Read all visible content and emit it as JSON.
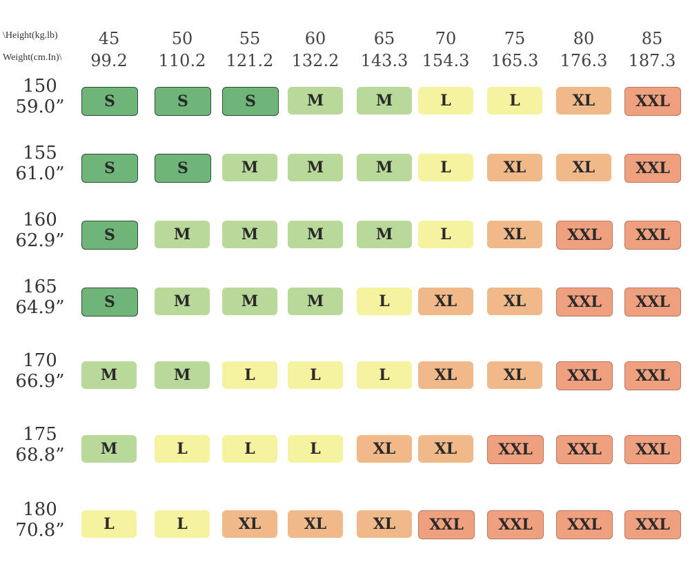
{
  "header": {
    "height_label": "\\Height(kg.lb)",
    "weight_label": "Weight(cm.In)\\"
  },
  "columns": [
    {
      "kg": "45",
      "lb": "99.2"
    },
    {
      "kg": "50",
      "lb": "110.2"
    },
    {
      "kg": "55",
      "lb": "121.2"
    },
    {
      "kg": "60",
      "lb": "132.2"
    },
    {
      "kg": "65",
      "lb": "143.3"
    },
    {
      "kg": "70",
      "lb": "154.3"
    },
    {
      "kg": "75",
      "lb": "165.3"
    },
    {
      "kg": "80",
      "lb": "176.3"
    },
    {
      "kg": "85",
      "lb": "187.3"
    }
  ],
  "rows": [
    {
      "cm": "150",
      "in": "59.0”",
      "sizes": [
        "S",
        "S",
        "S",
        "M",
        "M",
        "L",
        "L",
        "XL",
        "XXL"
      ]
    },
    {
      "cm": "155",
      "in": "61.0”",
      "sizes": [
        "S",
        "S",
        "M",
        "M",
        "M",
        "L",
        "XL",
        "XL",
        "XXL"
      ]
    },
    {
      "cm": "160",
      "in": "62.9”",
      "sizes": [
        "S",
        "M",
        "M",
        "M",
        "M",
        "L",
        "XL",
        "XXL",
        "XXL"
      ]
    },
    {
      "cm": "165",
      "in": "64.9”",
      "sizes": [
        "S",
        "M",
        "M",
        "M",
        "L",
        "XL",
        "XL",
        "XXL",
        "XXL"
      ]
    },
    {
      "cm": "170",
      "in": "66.9”",
      "sizes": [
        "M",
        "M",
        "L",
        "L",
        "L",
        "XL",
        "XL",
        "XXL",
        "XXL"
      ]
    },
    {
      "cm": "175",
      "in": "68.8”",
      "sizes": [
        "M",
        "L",
        "L",
        "L",
        "XL",
        "XL",
        "XXL",
        "XXL",
        "XXL"
      ]
    },
    {
      "cm": "180",
      "in": "70.8”",
      "sizes": [
        "L",
        "L",
        "XL",
        "XL",
        "XL",
        "XXL",
        "XXL",
        "XXL",
        "XXL"
      ]
    }
  ],
  "size_colors": {
    "S": "#6fb57a",
    "M": "#b9d99a",
    "L": "#f6f3a0",
    "XL": "#f0b98a",
    "XXL": "#efa07e"
  }
}
